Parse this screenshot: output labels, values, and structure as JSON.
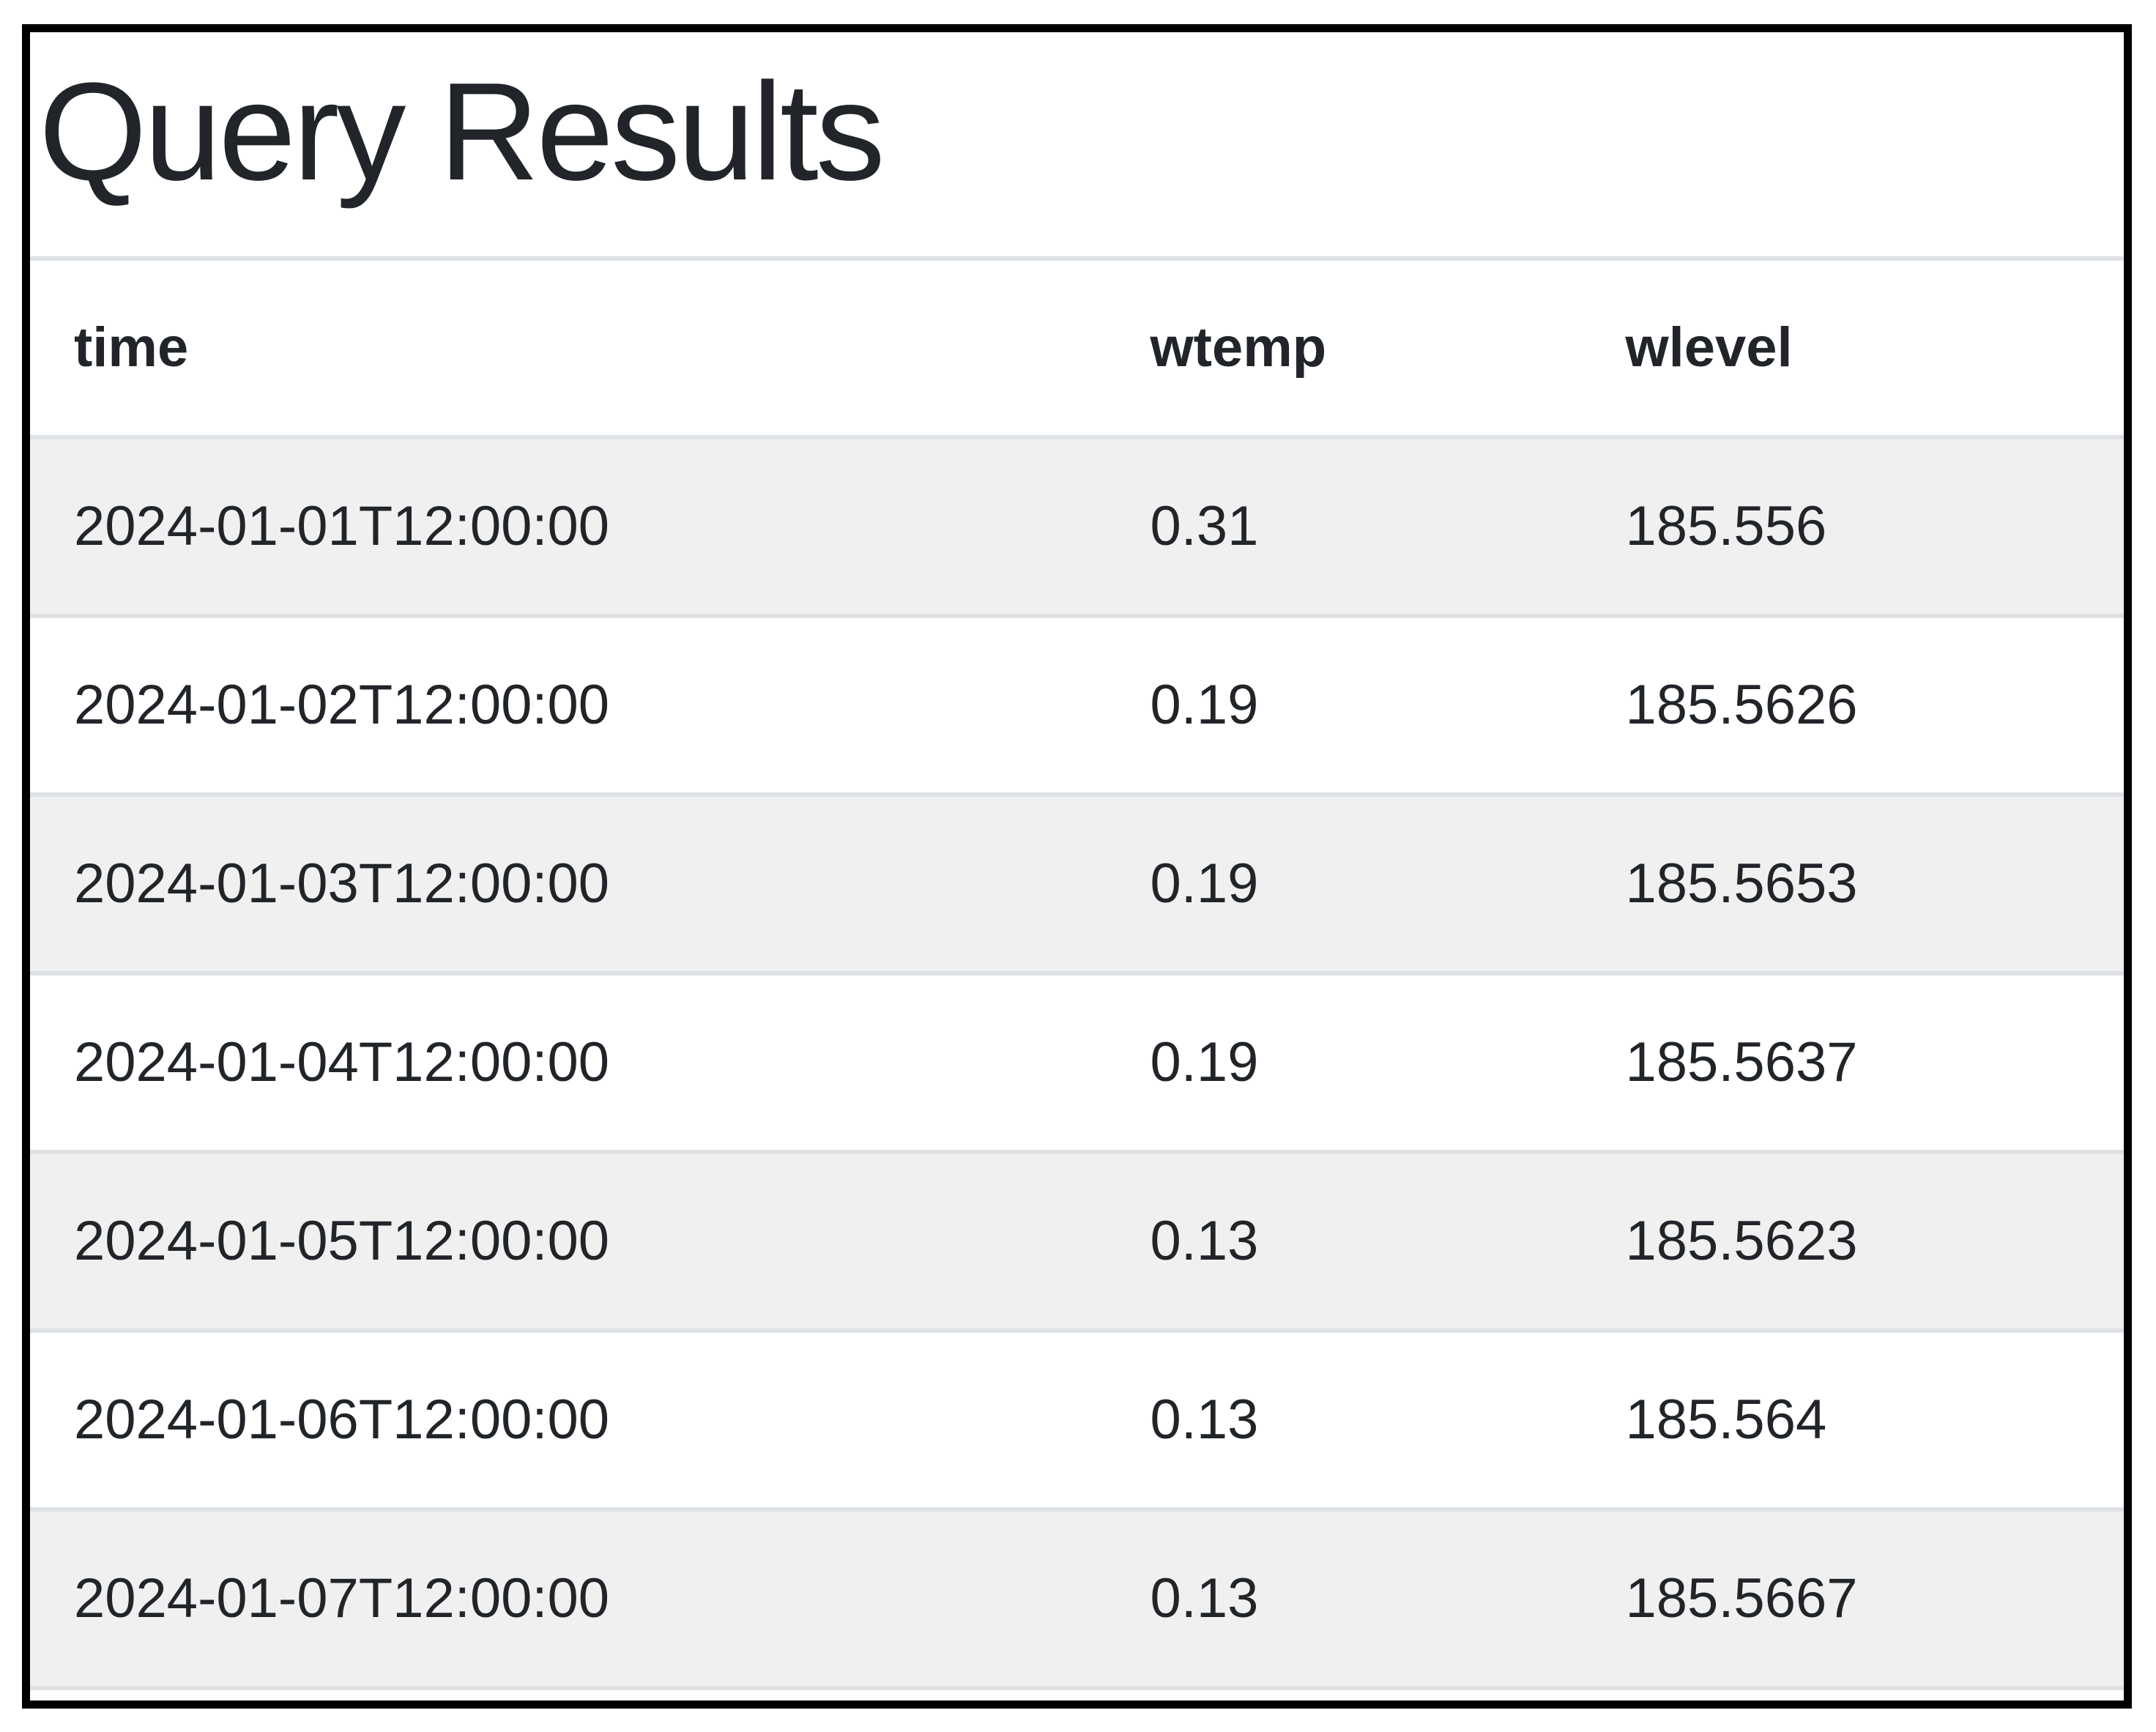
{
  "page": {
    "title": "Query Results"
  },
  "table": {
    "columns": [
      {
        "key": "time",
        "label": "time"
      },
      {
        "key": "wtemp",
        "label": "wtemp"
      },
      {
        "key": "wlevel",
        "label": "wlevel"
      }
    ],
    "rows": [
      {
        "time": "2024-01-01T12:00:00",
        "wtemp": "0.31",
        "wlevel": "185.556"
      },
      {
        "time": "2024-01-02T12:00:00",
        "wtemp": "0.19",
        "wlevel": "185.5626"
      },
      {
        "time": "2024-01-03T12:00:00",
        "wtemp": "0.19",
        "wlevel": "185.5653"
      },
      {
        "time": "2024-01-04T12:00:00",
        "wtemp": "0.19",
        "wlevel": "185.5637"
      },
      {
        "time": "2024-01-05T12:00:00",
        "wtemp": "0.13",
        "wlevel": "185.5623"
      },
      {
        "time": "2024-01-06T12:00:00",
        "wtemp": "0.13",
        "wlevel": "185.564"
      },
      {
        "time": "2024-01-07T12:00:00",
        "wtemp": "0.13",
        "wlevel": "185.5667"
      }
    ]
  },
  "colors": {
    "frame_border": "#000000",
    "text": "#212529",
    "stripe": "#f0f0f0",
    "divider": "#dee2e6",
    "background": "#ffffff"
  }
}
